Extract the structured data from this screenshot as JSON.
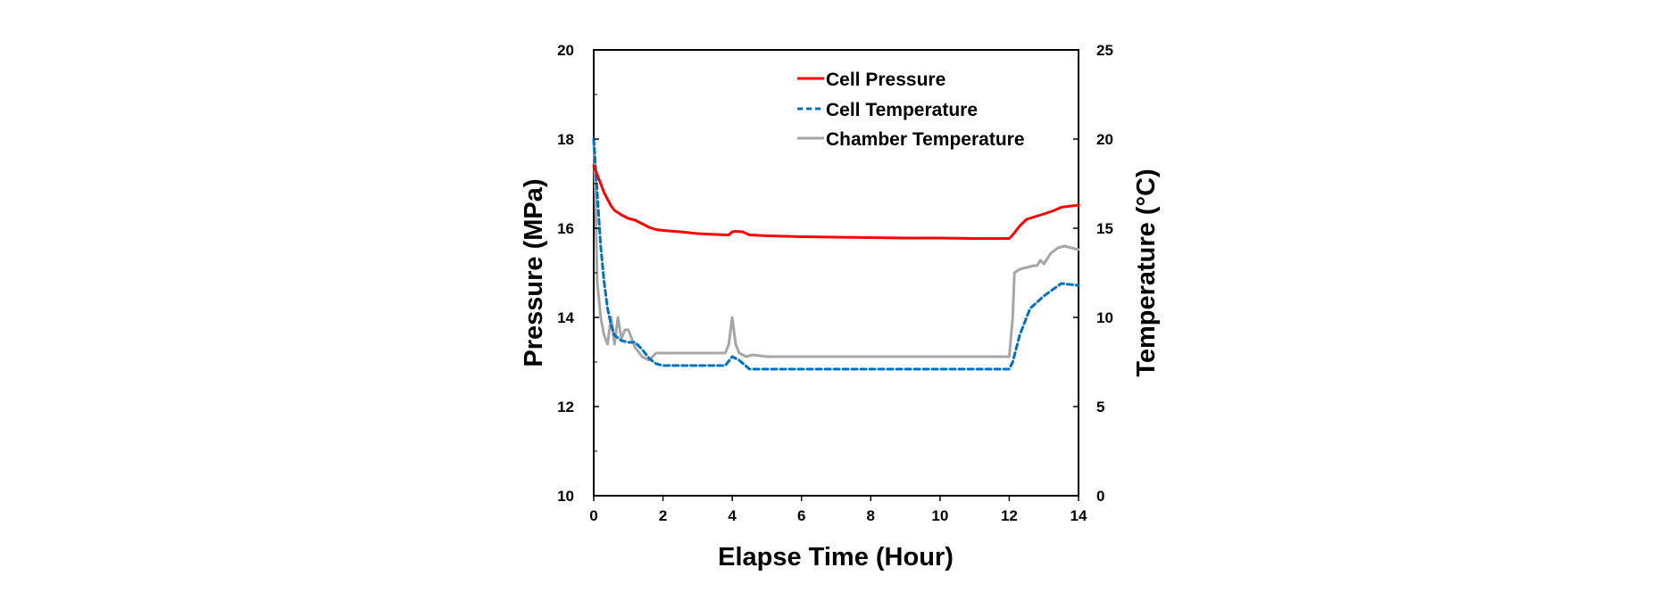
{
  "chart_data": {
    "type": "line",
    "xlabel": "Elapse Time (Hour)",
    "ylabel": "Pressure (MPa)",
    "y2label": "Temperature (°C)",
    "xlim": [
      0,
      14
    ],
    "ylim": [
      10,
      20
    ],
    "y2lim": [
      0,
      25
    ],
    "x_ticks": [
      "0",
      "2",
      "4",
      "6",
      "8",
      "10",
      "12",
      "14"
    ],
    "y_ticks": [
      "10",
      "12",
      "14",
      "16",
      "18",
      "20"
    ],
    "y2_ticks": [
      "0",
      "5",
      "10",
      "15",
      "20",
      "25"
    ],
    "grid": false,
    "legend_position": "top-right",
    "series": [
      {
        "name": "Cell Pressure",
        "axis": "left",
        "color": "#ff0000",
        "style": "solid",
        "x": [
          0,
          0.1,
          0.2,
          0.3,
          0.4,
          0.5,
          0.6,
          0.8,
          1.0,
          1.2,
          1.4,
          1.6,
          1.8,
          2.0,
          2.5,
          3.0,
          3.5,
          3.9,
          4.0,
          4.1,
          4.3,
          4.5,
          5.0,
          6.0,
          7.0,
          8.0,
          9.0,
          10.0,
          11.0,
          12.0,
          12.1,
          12.3,
          12.5,
          13.0,
          13.3,
          13.5,
          13.8,
          14.0
        ],
        "y": [
          17.4,
          17.2,
          17.0,
          16.8,
          16.65,
          16.5,
          16.4,
          16.3,
          16.22,
          16.18,
          16.1,
          16.02,
          15.97,
          15.95,
          15.92,
          15.88,
          15.86,
          15.85,
          15.92,
          15.93,
          15.92,
          15.85,
          15.83,
          15.81,
          15.8,
          15.79,
          15.78,
          15.78,
          15.77,
          15.77,
          15.85,
          16.05,
          16.2,
          16.32,
          16.4,
          16.47,
          16.5,
          16.52
        ]
      },
      {
        "name": "Cell Temperature",
        "axis": "right",
        "color": "#0070c0",
        "style": "dashed",
        "x": [
          0,
          0.1,
          0.2,
          0.3,
          0.4,
          0.5,
          0.6,
          0.8,
          1.0,
          1.2,
          1.4,
          1.6,
          1.8,
          2.0,
          3.0,
          3.8,
          4.0,
          4.2,
          4.5,
          5.0,
          6.0,
          8.0,
          10.0,
          12.0,
          12.1,
          12.3,
          12.6,
          13.0,
          13.5,
          14.0
        ],
        "y": [
          20.0,
          17.0,
          14.0,
          12.0,
          10.5,
          9.6,
          9.0,
          8.7,
          8.6,
          8.6,
          8.2,
          7.7,
          7.4,
          7.3,
          7.3,
          7.3,
          7.8,
          7.6,
          7.1,
          7.1,
          7.1,
          7.1,
          7.1,
          7.1,
          7.5,
          9.0,
          10.5,
          11.2,
          11.9,
          11.8
        ]
      },
      {
        "name": "Chamber Temperature",
        "axis": "right",
        "color": "#a6a6a6",
        "style": "solid",
        "x": [
          0,
          0.05,
          0.1,
          0.2,
          0.3,
          0.4,
          0.5,
          0.6,
          0.7,
          0.8,
          0.9,
          1.0,
          1.2,
          1.4,
          1.6,
          1.8,
          2.0,
          3.0,
          3.8,
          3.9,
          4.0,
          4.1,
          4.2,
          4.4,
          4.6,
          5.0,
          6.0,
          8.0,
          10.0,
          12.0,
          12.1,
          12.15,
          12.3,
          12.5,
          12.7,
          12.8,
          12.9,
          13.0,
          13.2,
          13.4,
          13.6,
          13.8,
          14.0
        ],
        "y": [
          20.0,
          17.0,
          12.0,
          10.0,
          9.0,
          8.5,
          10.0,
          8.5,
          10.0,
          8.8,
          9.3,
          9.3,
          8.3,
          7.8,
          7.6,
          8.0,
          8.0,
          8.0,
          8.0,
          8.5,
          10.0,
          8.5,
          8.0,
          7.8,
          7.9,
          7.8,
          7.8,
          7.8,
          7.8,
          7.8,
          10.0,
          12.5,
          12.7,
          12.8,
          12.9,
          12.9,
          13.2,
          13.0,
          13.6,
          13.9,
          14.0,
          13.9,
          13.8
        ]
      }
    ]
  }
}
